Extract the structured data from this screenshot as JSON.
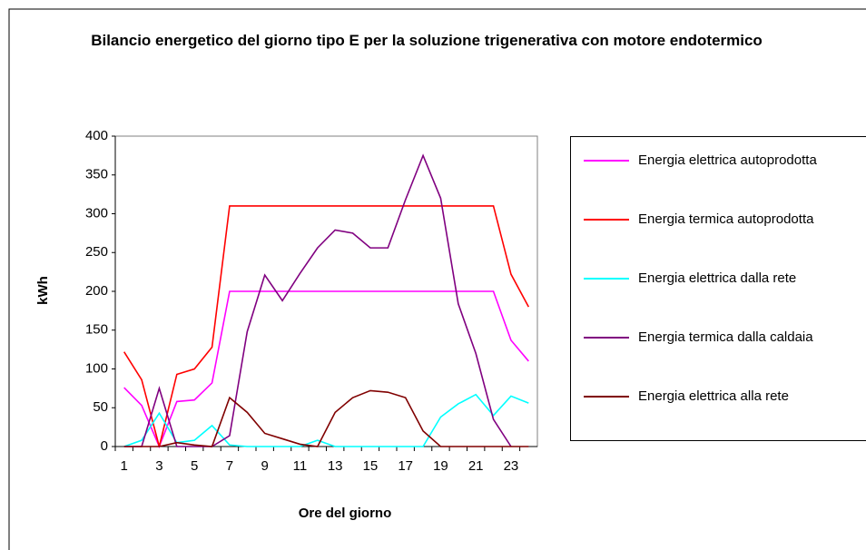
{
  "chart_data": {
    "type": "line",
    "title": "Bilancio energetico del giorno tipo E per la soluzione trigenerativa con motore endotermico",
    "x_label": "Ore del giorno",
    "y_label": "kWh",
    "categories": [
      1,
      null,
      3,
      null,
      5,
      null,
      7,
      null,
      9,
      null,
      11,
      null,
      13,
      null,
      15,
      null,
      17,
      null,
      19,
      null,
      21,
      null,
      23,
      null
    ],
    "series": [
      {
        "name": "Energia elettrica autoprodotta",
        "color": "#ff00ff",
        "values": [
          76,
          53,
          0,
          58,
          60,
          82,
          200,
          200,
          200,
          200,
          200,
          200,
          200,
          200,
          200,
          200,
          200,
          200,
          200,
          200,
          200,
          200,
          137,
          110
        ]
      },
      {
        "name": "Energia termica autoprodotta",
        "color": "#ff0000",
        "values": [
          122,
          86,
          0,
          93,
          100,
          128,
          310,
          310,
          310,
          310,
          310,
          310,
          310,
          310,
          310,
          310,
          310,
          310,
          310,
          310,
          310,
          310,
          222,
          180
        ]
      },
      {
        "name": "Energia elettrica dalla rete",
        "color": "#00ffff",
        "values": [
          0,
          8,
          43,
          5,
          8,
          27,
          2,
          0,
          0,
          0,
          0,
          8,
          0,
          0,
          0,
          0,
          0,
          0,
          38,
          55,
          67,
          40,
          65,
          56
        ]
      },
      {
        "name": "Energia termica dalla caldaia",
        "color": "#800080",
        "values": [
          0,
          0,
          75,
          0,
          0,
          0,
          14,
          148,
          221,
          188,
          223,
          256,
          279,
          275,
          256,
          256,
          318,
          375,
          320,
          184,
          120,
          35,
          0,
          null
        ]
      },
      {
        "name": "Energia elettrica alla rete",
        "color": "#800000",
        "values": [
          0,
          0,
          0,
          5,
          2,
          0,
          63,
          44,
          17,
          10,
          3,
          0,
          44,
          63,
          72,
          70,
          63,
          20,
          0,
          0,
          0,
          0,
          0,
          0
        ]
      }
    ],
    "ylim": [
      0,
      400
    ],
    "yticks": [
      0,
      50,
      100,
      150,
      200,
      250,
      300,
      350,
      400
    ],
    "grid": false,
    "legend": "right"
  }
}
